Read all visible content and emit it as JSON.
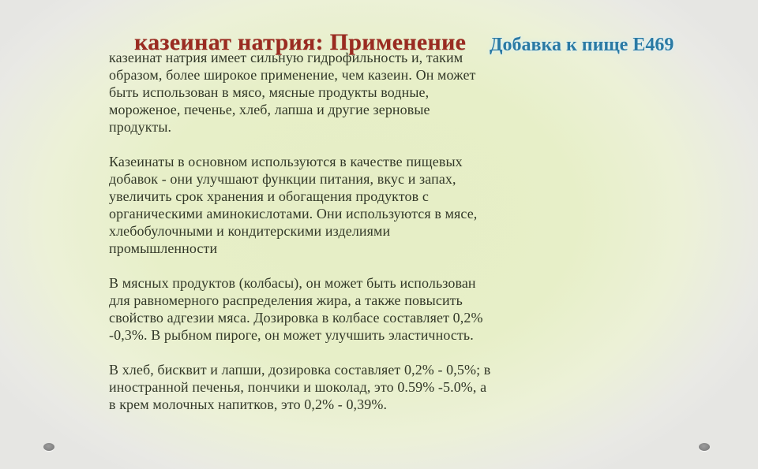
{
  "slide": {
    "title": "казеинат натрия: Применение",
    "side_label": "Добавка к пище Е469",
    "paragraphs": [
      {
        "text": "казеинат натрия имеет сильную гидрофильность и, таким образом, более широкое применение, чем казеин. Он может быть использован в мясо, мясные продукты водные, мороженое, печенье, хлеб, лапша и другие зерновые продукты."
      },
      {
        "text": "Казеинаты в основном используются в качестве пищевых добавок - они улучшают функции питания, вкус и запах, увеличить срок хранения и обогащения продуктов с органическими аминокислотами. Они используются в мясе, хлебобулочными и кондитерскими изделиями промышленности"
      },
      {
        "text": "В мясных продуктов (колбасы), он может быть использован для равномерного распределения жира, а также повысить свойство адгезии мяса. Дозировка в колбасе составляет 0,2% -0,3%. В рыбном пироге, он может улучшить эластичность."
      },
      {
        "text": "В хлеб, бисквит и лапши, дозировка составляет 0,2% - 0,5%; в иностранной печенья, пончики и шоколад, это 0.59% -5.0%, а в крем молочных напитков, это 0,2% - 0,39%."
      }
    ],
    "colors": {
      "title": "#9a2b21",
      "side_label": "#2b7aa4",
      "body_text": "#323828",
      "background_center": "#e7efc8",
      "background_edge": "#e6e6e3",
      "decorative_dot": "#858585"
    }
  }
}
